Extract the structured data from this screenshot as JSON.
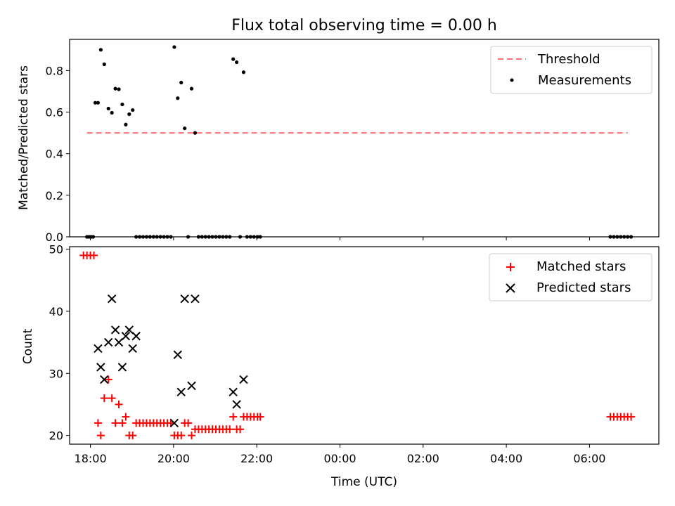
{
  "chart_data": [
    {
      "type": "scatter",
      "title": "Flux total observing time = 0.00 h",
      "ylabel": "Matched/Predicted stars",
      "xlabel": "",
      "xlim": [
        "17:30",
        "07:40"
      ],
      "ylim": [
        0,
        0.95
      ],
      "yticks": [
        0.0,
        0.2,
        0.4,
        0.6,
        0.8
      ],
      "ytick_labels": [
        "0.0",
        "0.2",
        "0.4",
        "0.6",
        "0.8"
      ],
      "legend_position": "upper-right",
      "series": [
        {
          "name": "Threshold",
          "kind": "line",
          "style": "dashed",
          "color": "#ff7070",
          "x": [
            "17:55",
            "06:55"
          ],
          "y": [
            0.5,
            0.5
          ]
        },
        {
          "name": "Measurements",
          "kind": "points",
          "color": "#000000",
          "x": [
            "17:55",
            "17:58",
            "18:01",
            "18:04",
            "18:07",
            "18:11",
            "18:15",
            "18:20",
            "18:26",
            "18:31",
            "18:36",
            "18:41",
            "18:46",
            "18:51",
            "18:56",
            "19:01",
            "19:06",
            "19:11",
            "19:16",
            "19:21",
            "19:26",
            "19:31",
            "19:36",
            "19:41",
            "19:46",
            "19:51",
            "19:56",
            "20:01",
            "20:06",
            "20:11",
            "20:16",
            "20:21",
            "20:26",
            "20:31",
            "20:36",
            "20:41",
            "20:46",
            "20:51",
            "20:56",
            "21:01",
            "21:06",
            "21:11",
            "21:16",
            "21:21",
            "21:26",
            "21:31",
            "21:36",
            "21:41",
            "21:46",
            "21:51",
            "21:56",
            "22:01",
            "22:05",
            "06:30",
            "06:35",
            "06:40",
            "06:45",
            "06:50",
            "06:55",
            "07:00"
          ],
          "y": [
            0.0,
            0.0,
            0.0,
            0.0,
            0.645,
            0.645,
            0.9,
            0.83,
            0.617,
            0.597,
            0.713,
            0.71,
            0.637,
            0.54,
            0.59,
            0.61,
            0.0,
            0.0,
            0.0,
            0.0,
            0.0,
            0.0,
            0.0,
            0.0,
            0.0,
            0.0,
            0.0,
            0.913,
            0.667,
            0.742,
            0.522,
            0.0,
            0.713,
            0.5,
            0.0,
            0.0,
            0.0,
            0.0,
            0.0,
            0.0,
            0.0,
            0.0,
            0.0,
            0.0,
            0.855,
            0.84,
            0.0,
            0.792,
            0.0,
            0.0,
            0.0,
            0.0,
            0.0,
            0.0,
            0.0,
            0.0,
            0.0,
            0.0,
            0.0,
            0.0
          ]
        }
      ]
    },
    {
      "type": "scatter",
      "title": "",
      "ylabel": "Count",
      "xlabel": "Time (UTC)",
      "xlim": [
        "17:30",
        "07:40"
      ],
      "ylim": [
        18.6,
        50.4
      ],
      "yticks": [
        20,
        30,
        40,
        50
      ],
      "ytick_labels": [
        "20",
        "30",
        "40",
        "50"
      ],
      "xticks": [
        "18:00",
        "20:00",
        "22:00",
        "00:00",
        "02:00",
        "04:00",
        "06:00"
      ],
      "legend_position": "upper-right",
      "series": [
        {
          "name": "Matched stars",
          "marker": "plus",
          "color": "#ff0000",
          "x": [
            "17:50",
            "17:55",
            "18:00",
            "18:05",
            "18:11",
            "18:15",
            "18:20",
            "18:26",
            "18:31",
            "18:36",
            "18:41",
            "18:46",
            "18:51",
            "18:56",
            "19:01",
            "19:06",
            "19:11",
            "19:16",
            "19:21",
            "19:26",
            "19:31",
            "19:36",
            "19:41",
            "19:46",
            "19:51",
            "19:56",
            "20:01",
            "20:06",
            "20:11",
            "20:16",
            "20:21",
            "20:26",
            "20:31",
            "20:36",
            "20:41",
            "20:46",
            "20:51",
            "20:56",
            "21:01",
            "21:06",
            "21:11",
            "21:16",
            "21:21",
            "21:26",
            "21:31",
            "21:36",
            "21:41",
            "21:46",
            "21:51",
            "21:56",
            "22:01",
            "22:05",
            "06:30",
            "06:35",
            "06:40",
            "06:45",
            "06:50",
            "06:55",
            "07:00"
          ],
          "y": [
            49,
            49,
            49,
            49,
            22,
            20,
            26,
            29,
            26,
            22,
            25,
            22,
            23,
            20,
            20,
            22,
            22,
            22,
            22,
            22,
            22,
            22,
            22,
            22,
            22,
            22,
            20,
            20,
            20,
            22,
            22,
            20,
            21,
            21,
            21,
            21,
            21,
            21,
            21,
            21,
            21,
            21,
            21,
            23,
            21,
            21,
            23,
            23,
            23,
            23,
            23,
            23,
            23,
            23,
            23,
            23,
            23,
            23,
            23
          ]
        },
        {
          "name": "Predicted stars",
          "marker": "x",
          "color": "#000000",
          "x": [
            "18:11",
            "18:15",
            "18:20",
            "18:26",
            "18:31",
            "18:36",
            "18:41",
            "18:46",
            "18:51",
            "18:56",
            "19:01",
            "19:06",
            "20:01",
            "20:06",
            "20:11",
            "20:16",
            "20:26",
            "20:31",
            "21:26",
            "21:31",
            "21:41"
          ],
          "y": [
            34,
            31,
            29,
            35,
            42,
            37,
            35,
            31,
            36,
            37,
            34,
            36,
            22,
            33,
            27,
            42,
            28,
            42,
            27,
            25,
            29
          ]
        }
      ]
    }
  ]
}
